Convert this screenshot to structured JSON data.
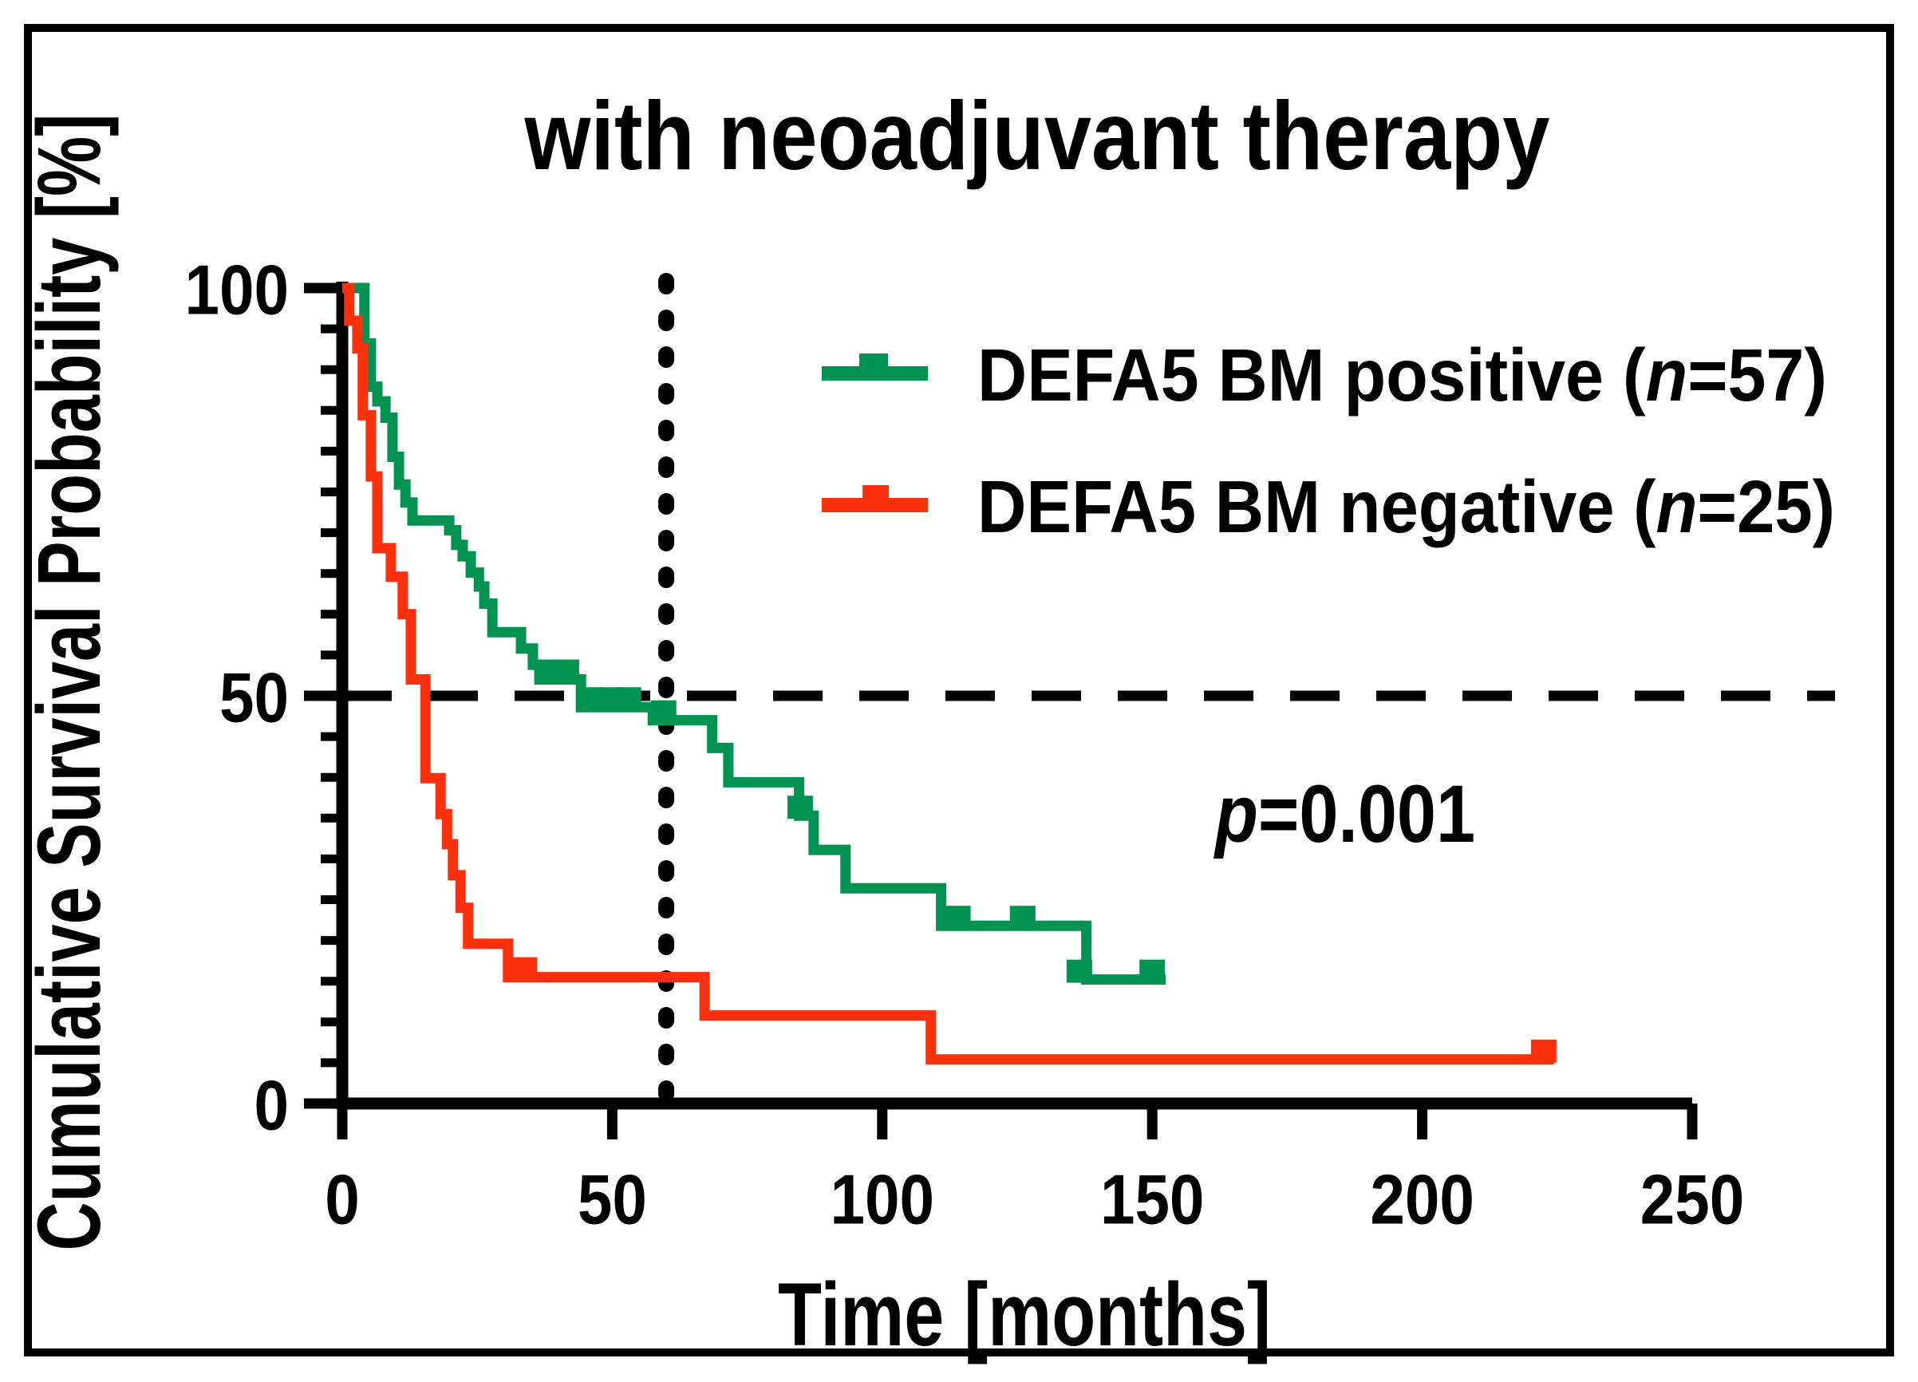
{
  "title": "with neoadjuvant therapy",
  "annotation": {
    "p_italic": "p",
    "p_rest": "=0.001"
  },
  "axes": {
    "x": {
      "label": "Time [months]",
      "ticks": [
        "0",
        "50",
        "100",
        "150",
        "200",
        "250"
      ],
      "tick_values": [
        0,
        50,
        100,
        150,
        200,
        250
      ],
      "range": [
        0,
        250
      ]
    },
    "y": {
      "label": "Cumulative Survival Probability [%]",
      "ticks": [
        "100",
        "50",
        "0"
      ],
      "tick_values": [
        100,
        50,
        0
      ],
      "minor_step": 5,
      "range": [
        0,
        100
      ]
    }
  },
  "reference_lines": {
    "horizontal_pct": 50,
    "vertical_months": 60
  },
  "legend": [
    {
      "id": "positive",
      "prefix": "DEFA5 BM positive (",
      "n_italic": "n",
      "suffix": "=57)",
      "color": "#009351"
    },
    {
      "id": "negative",
      "prefix": "DEFA5 BM negative (",
      "n_italic": "n",
      "suffix": "=25)",
      "color": "#FB300D"
    }
  ],
  "chart_data": {
    "type": "line",
    "subtype": "kaplan-meier-step",
    "title": "with neoadjuvant therapy",
    "xlabel": "Time [months]",
    "ylabel": "Cumulative Survival Probability [%]",
    "xlim": [
      0,
      250
    ],
    "ylim": [
      0,
      100
    ],
    "grid": false,
    "legend_position": "upper-right-inside",
    "p_value_text": "p=0.001",
    "series": [
      {
        "name": "DEFA5 BM positive (n=57)",
        "n": 57,
        "color": "#009351",
        "km_steps": [
          [
            0,
            100
          ],
          [
            4.1,
            93.2
          ],
          [
            5.3,
            87.9
          ],
          [
            6.5,
            86.1
          ],
          [
            8.0,
            84.1
          ],
          [
            9.3,
            79.3
          ],
          [
            10.5,
            75.9
          ],
          [
            11.7,
            73.7
          ],
          [
            13.0,
            71.5
          ],
          [
            19.8,
            70.3
          ],
          [
            21.1,
            68.5
          ],
          [
            22.3,
            67.1
          ],
          [
            23.8,
            65.1
          ],
          [
            25.3,
            63.4
          ],
          [
            26.3,
            61.3
          ],
          [
            27.8,
            57.8
          ],
          [
            33.1,
            55.8
          ],
          [
            35.3,
            53.8
          ],
          [
            36.5,
            52.0
          ],
          [
            44.2,
            48.6
          ],
          [
            57.5,
            47.0
          ],
          [
            68.5,
            43.6
          ],
          [
            71.5,
            39.4
          ],
          [
            84.6,
            35.3
          ],
          [
            87.3,
            31.1
          ],
          [
            93.2,
            26.4
          ],
          [
            110.9,
            21.8
          ],
          [
            137.8,
            15.2
          ]
        ],
        "end_time": 152.5,
        "censor_marks": [
          [
            38.5,
            52.0
          ],
          [
            41.5,
            52.0
          ],
          [
            46.0,
            48.6
          ],
          [
            49.5,
            48.6
          ],
          [
            53.0,
            48.6
          ],
          [
            59.5,
            47.0
          ],
          [
            84.8,
            35.3
          ],
          [
            114.0,
            21.8
          ],
          [
            126.0,
            21.8
          ],
          [
            136.5,
            15.2
          ],
          [
            150.0,
            15.2
          ]
        ]
      },
      {
        "name": "DEFA5 BM negative (n=25)",
        "n": 25,
        "color": "#FB300D",
        "km_steps": [
          [
            0,
            100
          ],
          [
            1.3,
            96.0
          ],
          [
            2.8,
            92.6
          ],
          [
            3.8,
            84.4
          ],
          [
            5.3,
            76.9
          ],
          [
            6.5,
            68.1
          ],
          [
            9.0,
            64.6
          ],
          [
            11.2,
            60.0
          ],
          [
            12.7,
            52.0
          ],
          [
            15.4,
            39.9
          ],
          [
            18.2,
            35.5
          ],
          [
            19.4,
            31.8
          ],
          [
            20.5,
            28.0
          ],
          [
            21.9,
            24.0
          ],
          [
            23.3,
            19.6
          ],
          [
            30.7,
            15.5
          ],
          [
            67.1,
            10.8
          ],
          [
            109.0,
            5.4
          ]
        ],
        "end_time": 224.4,
        "censor_marks": [
          [
            33.7,
            15.5
          ],
          [
            222.5,
            5.4
          ]
        ]
      }
    ]
  }
}
